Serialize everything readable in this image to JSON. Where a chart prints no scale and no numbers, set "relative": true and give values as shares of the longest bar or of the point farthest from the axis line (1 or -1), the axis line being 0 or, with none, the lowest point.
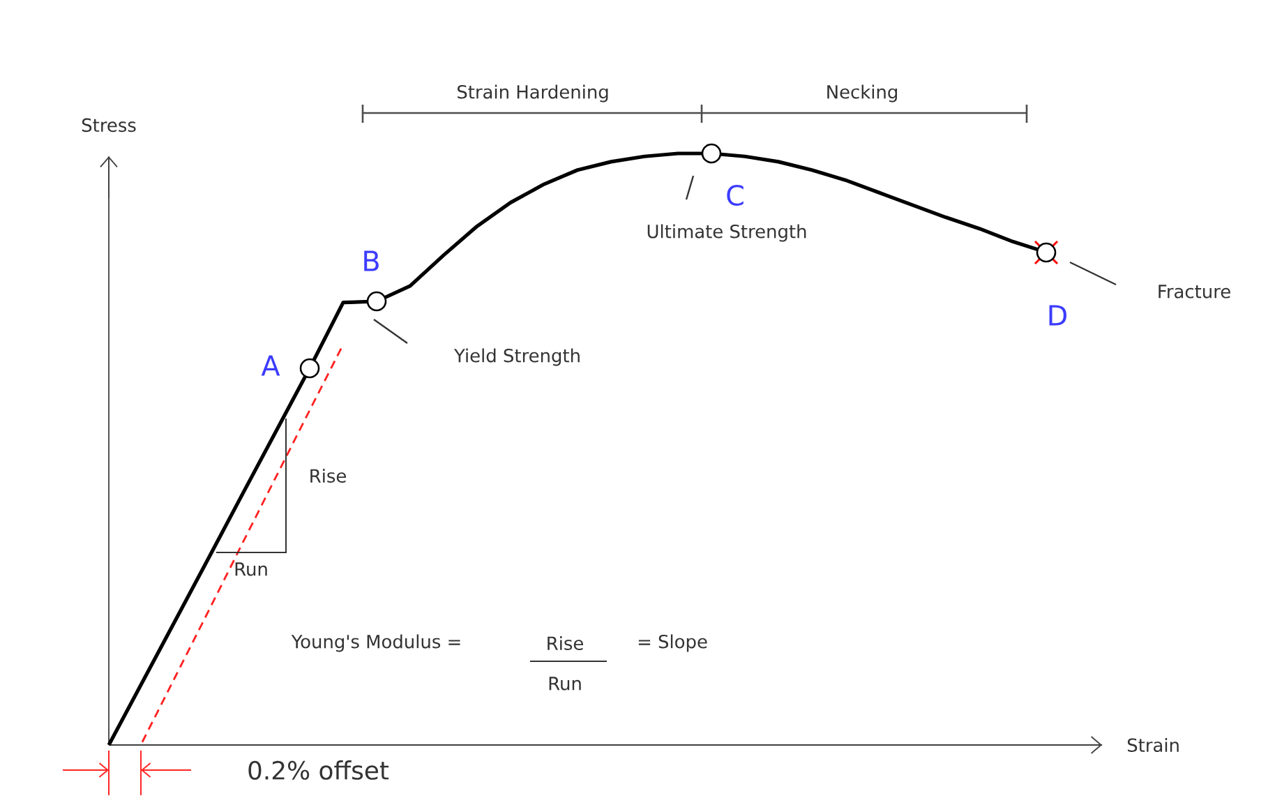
{
  "chart_data": {
    "type": "line",
    "relative": true,
    "xlabel": "Strain",
    "ylabel": "Stress",
    "categories": [
      null,
      null,
      null,
      null,
      null,
      null,
      null,
      null,
      null,
      null,
      null,
      null,
      null,
      null,
      null,
      null,
      null,
      null,
      null,
      null,
      null,
      null,
      null,
      null,
      null,
      null,
      null,
      null,
      null
    ],
    "series": [
      {
        "color": "#000000",
        "values": [
          0,
          0.106,
          0.212,
          0.318,
          0.425,
          0.531,
          0.637,
          0.748,
          0.75,
          0.776,
          0.828,
          0.877,
          0.917,
          0.948,
          0.972,
          0.986,
          0.995,
          1,
          1,
          0.995,
          0.986,
          0.972,
          0.955,
          0.934,
          0.913,
          0.892,
          0.873,
          0.851,
          0.833
        ]
      },
      {
        "color": "#ff2020",
        "line_style": "dashed",
        "values": [
          null,
          0.005,
          0.117,
          0.229,
          0.342,
          0.454,
          0.566,
          0.677,
          null,
          null,
          null,
          null,
          null,
          null,
          null,
          null,
          null,
          null,
          null,
          null,
          null,
          null,
          null,
          null,
          null,
          null,
          null,
          null,
          null
        ]
      }
    ],
    "annotations": [
      "Strain Hardening",
      "Necking",
      "A",
      "B",
      "C",
      "D",
      "Yield Strength",
      "Ultimate Strength",
      "Fracture",
      "Rise",
      "Run",
      "Young's Modulus =",
      "Rise",
      "Run",
      "= Slope",
      "0.2% offset"
    ]
  }
}
